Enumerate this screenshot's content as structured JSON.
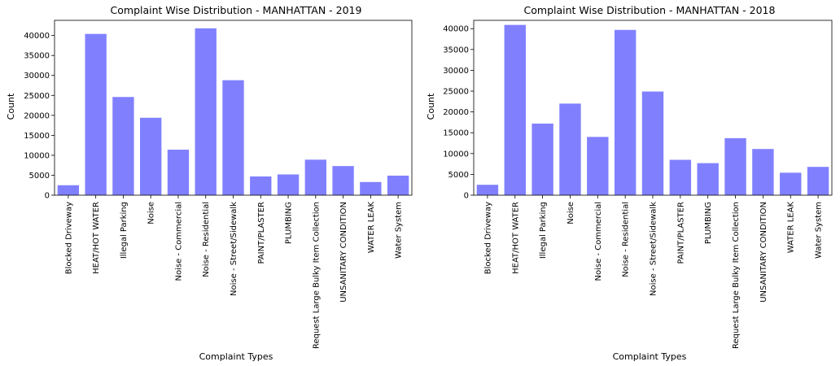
{
  "chart_data": [
    {
      "type": "bar",
      "title": "Complaint Wise Distribution - MANHATTAN - 2019",
      "xlabel": "Complaint Types",
      "ylabel": "Count",
      "ylim": [
        0,
        43800
      ],
      "yticks": [
        0,
        5000,
        10000,
        15000,
        20000,
        25000,
        30000,
        35000,
        40000
      ],
      "categories": [
        "Blocked Driveway",
        "HEAT/HOT WATER",
        "Illegal Parking",
        "Noise",
        "Noise - Commercial",
        "Noise - Residential",
        "Noise - Street/Sidewalk",
        "PAINT/PLASTER",
        "PLUMBING",
        "Request Large Bulky Item Collection",
        "UNSANITARY CONDITION",
        "WATER LEAK",
        "Water System"
      ],
      "values": [
        2500,
        40400,
        24600,
        19400,
        11400,
        41800,
        28800,
        4700,
        5200,
        8900,
        7300,
        3300,
        4900
      ],
      "color": "#8080ff",
      "grid": false
    },
    {
      "type": "bar",
      "title": "Complaint Wise Distribution - MANHATTAN - 2018",
      "xlabel": "Complaint Types",
      "ylabel": "Count",
      "ylim": [
        0,
        42000
      ],
      "yticks": [
        0,
        5000,
        10000,
        15000,
        20000,
        25000,
        30000,
        35000,
        40000
      ],
      "categories": [
        "Blocked Driveway",
        "HEAT/HOT WATER",
        "Illegal Parking",
        "Noise",
        "Noise - Commercial",
        "Noise - Residential",
        "Noise - Street/Sidewalk",
        "PAINT/PLASTER",
        "PLUMBING",
        "Request Large Bulky Item Collection",
        "UNSANITARY CONDITION",
        "WATER LEAK",
        "Water System"
      ],
      "values": [
        2500,
        40900,
        17200,
        22000,
        14000,
        39700,
        24900,
        8500,
        7700,
        13700,
        11100,
        5400,
        6800
      ],
      "color": "#8080ff",
      "grid": false
    }
  ]
}
